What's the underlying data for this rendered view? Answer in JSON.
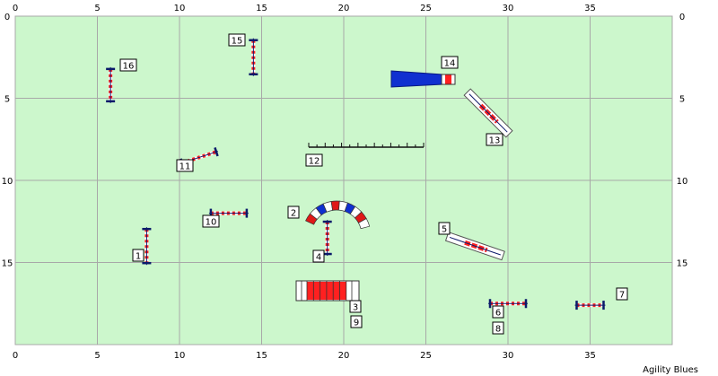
{
  "field": {
    "width_units": 40,
    "height_units": 20,
    "background": "#ccf7cc",
    "grid_color": "#a8a8a8"
  },
  "axes": {
    "x_ticks": [
      "0",
      "5",
      "10",
      "15",
      "20",
      "25",
      "30",
      "35"
    ],
    "y_ticks": [
      "0",
      "5",
      "10",
      "15"
    ]
  },
  "brand": "Agility Blues",
  "obstacles": [
    {
      "type": "jump",
      "label": "1",
      "x": 8.0,
      "y": 14.0,
      "angle": 90
    },
    {
      "type": "tunnel_curved",
      "label": "2"
    },
    {
      "type": "a_frame",
      "label": "3",
      "x": 19.0,
      "y": 17.0
    },
    {
      "type": "jump",
      "label": "4",
      "x": 19.0,
      "y": 13.5,
      "angle": 90
    },
    {
      "type": "jump_spread",
      "label": "5",
      "x": 28.0,
      "y": 14.0,
      "angle": 19
    },
    {
      "type": "jump",
      "label": "6",
      "x": 30.0,
      "y": 17.5,
      "angle": 0
    },
    {
      "type": "jump",
      "label": "7",
      "x": 35.0,
      "y": 17.6,
      "angle": 0
    },
    {
      "type": "label_only",
      "label": "8"
    },
    {
      "type": "label_only",
      "label": "9"
    },
    {
      "type": "jump",
      "label": "10",
      "x": 13.0,
      "y": 12.0,
      "angle": 0
    },
    {
      "type": "jump",
      "label": "11",
      "x": 11.2,
      "y": 8.6,
      "angle": -18
    },
    {
      "type": "ruler",
      "label": "12"
    },
    {
      "type": "jump_spread",
      "label": "13",
      "x": 28.8,
      "y": 5.9,
      "angle": 45
    },
    {
      "type": "tunnel_chute",
      "label": "14"
    },
    {
      "type": "jump",
      "label": "15",
      "x": 14.5,
      "y": 2.5,
      "angle": 90
    },
    {
      "type": "jump",
      "label": "16",
      "x": 5.8,
      "y": 4.2,
      "angle": 90
    }
  ],
  "colors": {
    "pole_red": "#ff2020",
    "post_navy": "#0b1a6a",
    "tunnel_blue": "#1030d0",
    "label_bg": "#ffffff"
  }
}
